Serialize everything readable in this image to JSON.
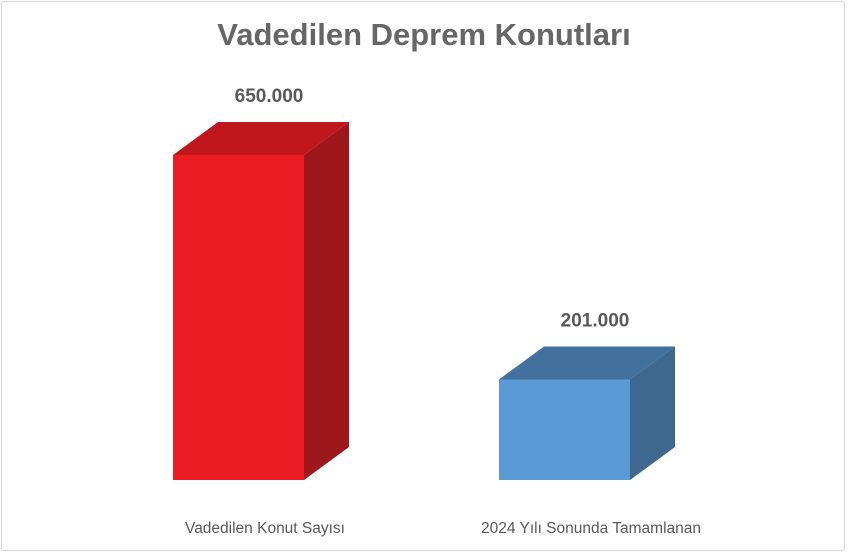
{
  "chart_data": {
    "type": "bar",
    "title": "Vadedilen Deprem Konutları",
    "categories": [
      "Vadedilen Konut Sayısı",
      "2024 Yılı Sonunda Tamamlanan"
    ],
    "values": [
      650000,
      201000
    ],
    "data_labels": [
      "650.000",
      "201.000"
    ],
    "colors": [
      {
        "front": "#ed1c24",
        "top": "#c0171d",
        "side": "#9e171c"
      },
      {
        "front": "#5b9bd5",
        "top": "#41719c",
        "side": "#3e6890"
      }
    ],
    "style": "3d-column",
    "grid": false,
    "legend": "none"
  }
}
